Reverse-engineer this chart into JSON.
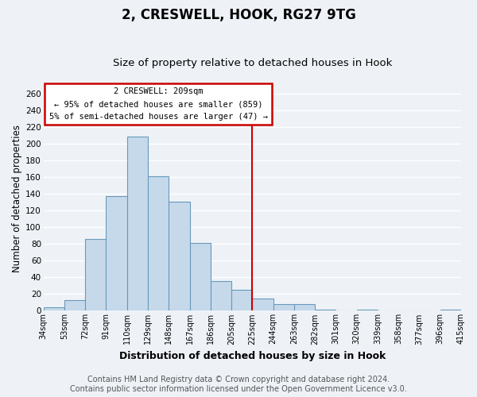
{
  "title": "2, CRESWELL, HOOK, RG27 9TG",
  "subtitle": "Size of property relative to detached houses in Hook",
  "xlabel": "Distribution of detached houses by size in Hook",
  "ylabel": "Number of detached properties",
  "bar_labels": [
    "34sqm",
    "53sqm",
    "72sqm",
    "91sqm",
    "110sqm",
    "129sqm",
    "148sqm",
    "167sqm",
    "186sqm",
    "205sqm",
    "225sqm",
    "244sqm",
    "263sqm",
    "282sqm",
    "301sqm",
    "320sqm",
    "339sqm",
    "358sqm",
    "377sqm",
    "396sqm",
    "415sqm"
  ],
  "bar_values": [
    4,
    13,
    86,
    138,
    209,
    161,
    131,
    81,
    36,
    25,
    15,
    8,
    8,
    1,
    0,
    1,
    0,
    0,
    0,
    1,
    1
  ],
  "bar_color": "#c6d9ea",
  "bar_edge_color": "#6899bb",
  "ylim": [
    0,
    270
  ],
  "yticks": [
    0,
    20,
    40,
    60,
    80,
    100,
    120,
    140,
    160,
    180,
    200,
    220,
    240,
    260
  ],
  "vline_color": "#cc0000",
  "annotation_box_edge_color": "#cc0000",
  "annotation_title": "2 CRESWELL: 209sqm",
  "annotation_line1": "← 95% of detached houses are smaller (859)",
  "annotation_line2": "5% of semi-detached houses are larger (47) →",
  "footer_line1": "Contains HM Land Registry data © Crown copyright and database right 2024.",
  "footer_line2": "Contains public sector information licensed under the Open Government Licence v3.0.",
  "background_color": "#eef2f7",
  "grid_color": "#ffffff",
  "title_fontsize": 12,
  "subtitle_fontsize": 9.5,
  "xlabel_fontsize": 9,
  "ylabel_fontsize": 8.5,
  "tick_fontsize": 7,
  "footer_fontsize": 7
}
